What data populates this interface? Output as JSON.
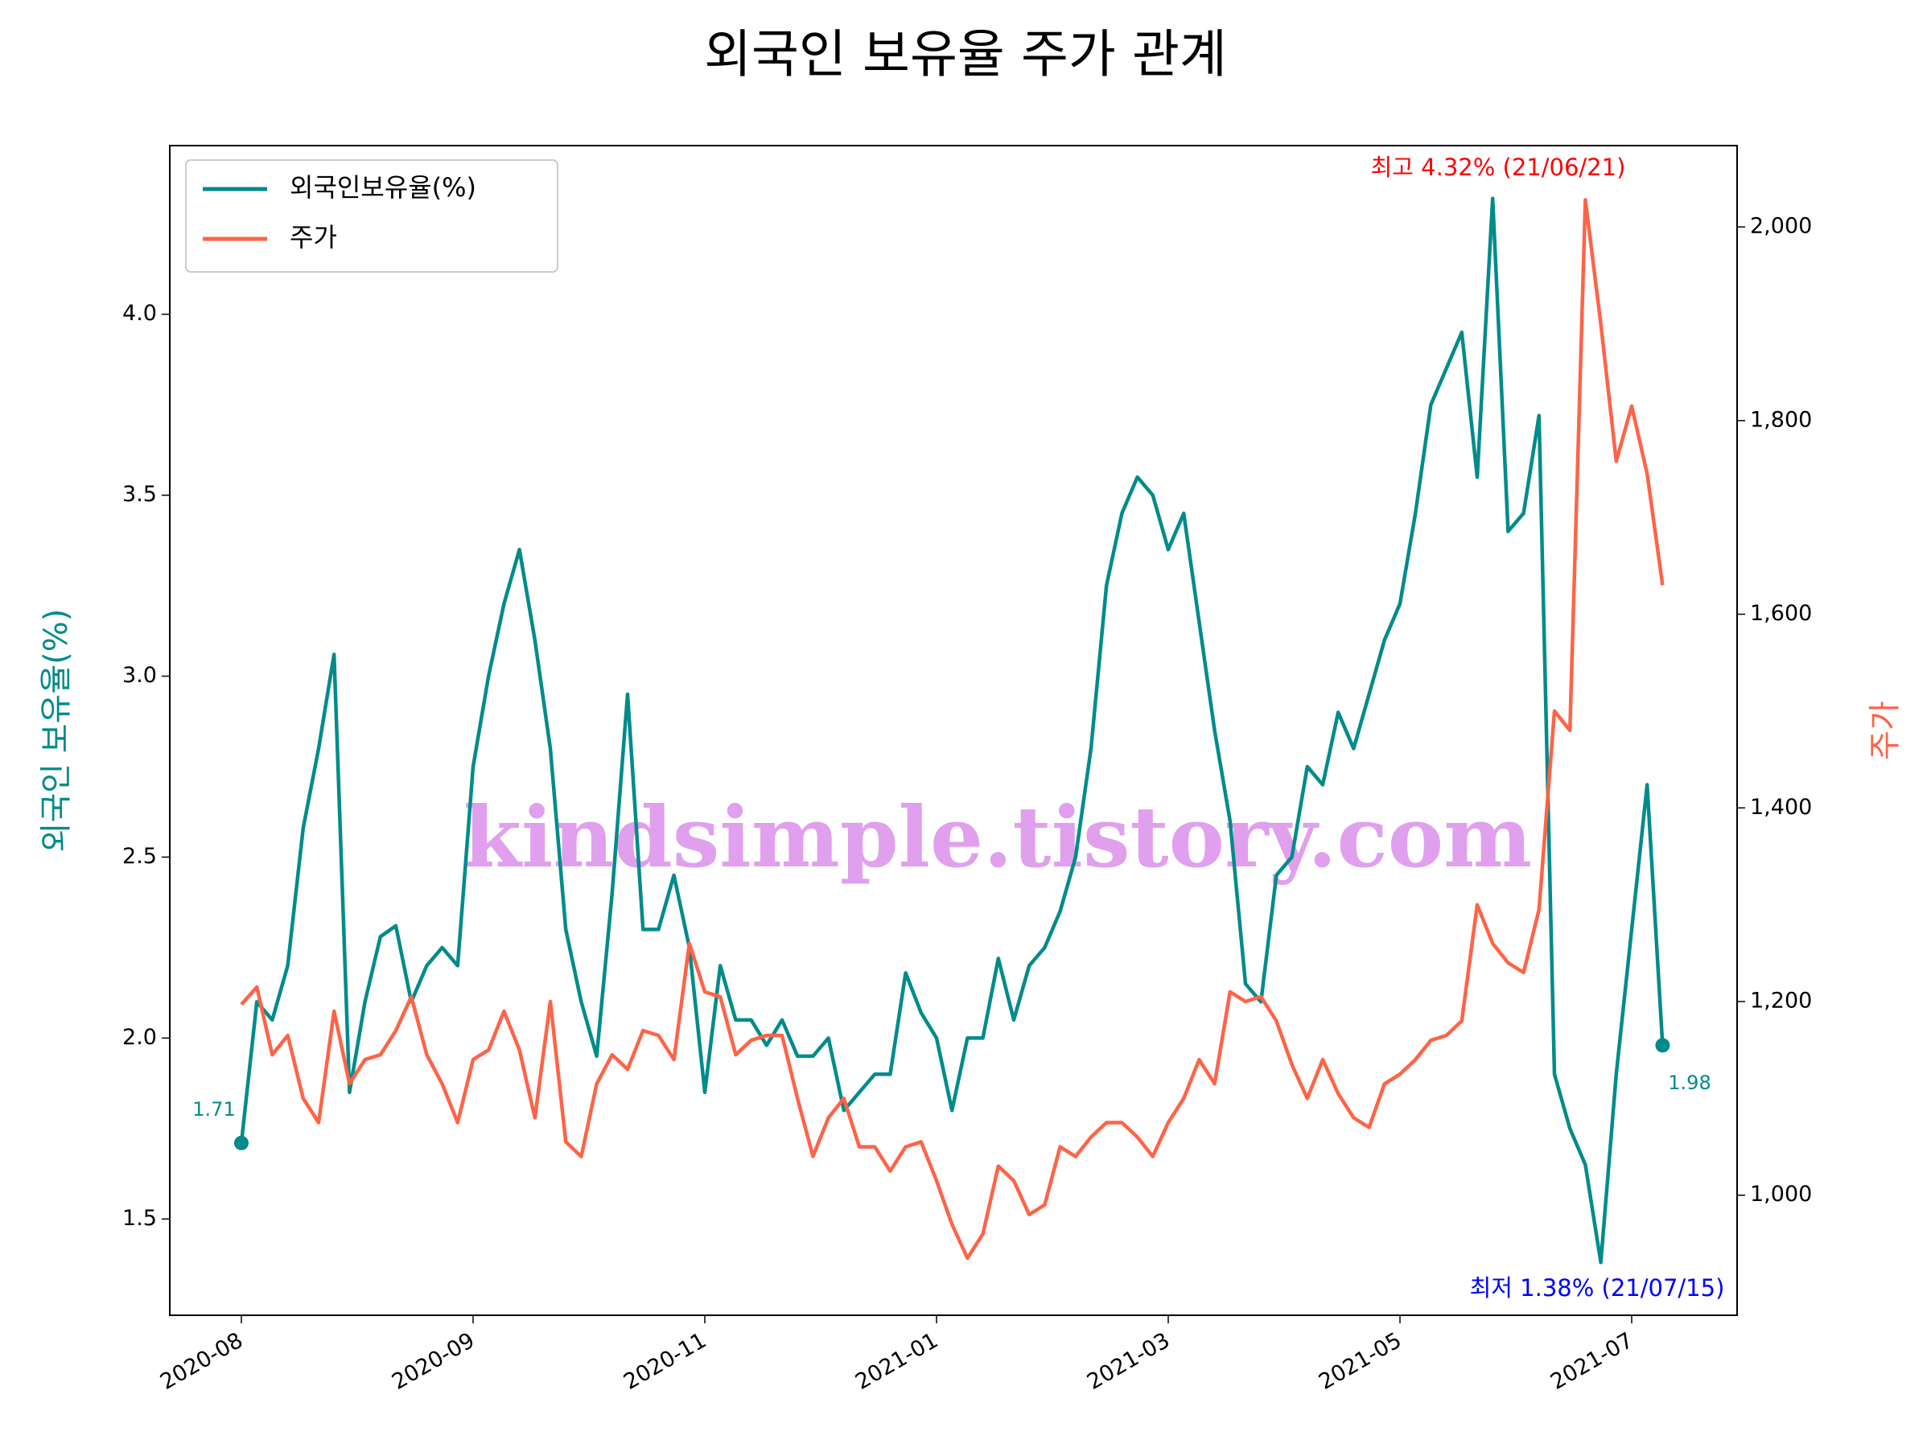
{
  "chart_data": {
    "type": "line",
    "title": "외국인 보유율 주가 관계",
    "ylabel": "외국인 보유율(%)",
    "y2label": "주가",
    "watermark": "kindsimple.tistory.com",
    "legend": "upper left",
    "categories": [
      "2020-08",
      null,
      null,
      null,
      null,
      null,
      null,
      null,
      null,
      null,
      null,
      null,
      null,
      null,
      null,
      "2020-09",
      null,
      null,
      null,
      null,
      null,
      null,
      null,
      null,
      null,
      null,
      null,
      null,
      null,
      null,
      "2020-11",
      null,
      null,
      null,
      null,
      null,
      null,
      null,
      null,
      null,
      null,
      null,
      null,
      null,
      null,
      "2021-01",
      null,
      null,
      null,
      null,
      null,
      null,
      null,
      null,
      null,
      null,
      null,
      null,
      null,
      null,
      "2021-03",
      null,
      null,
      null,
      null,
      null,
      null,
      null,
      null,
      null,
      null,
      null,
      null,
      null,
      null,
      "2021-05",
      null,
      null,
      null,
      null,
      null,
      null,
      null,
      null,
      null,
      null,
      null,
      null,
      null,
      null,
      "2021-07",
      null,
      null
    ],
    "series": [
      {
        "name": "외국인보유율(%)",
        "color": "#008b8b",
        "axis": "y",
        "values": [
          1.71,
          2.1,
          2.05,
          2.2,
          2.58,
          2.8,
          3.06,
          1.85,
          2.1,
          2.28,
          2.31,
          2.1,
          2.2,
          2.25,
          2.2,
          2.75,
          3.0,
          3.2,
          3.35,
          3.1,
          2.8,
          2.3,
          2.1,
          1.95,
          2.4,
          2.95,
          2.3,
          2.3,
          2.45,
          2.25,
          1.85,
          2.2,
          2.05,
          2.05,
          1.98,
          2.05,
          1.95,
          1.95,
          2.0,
          1.8,
          1.85,
          1.9,
          1.9,
          2.18,
          2.07,
          2.0,
          1.8,
          2.0,
          2.0,
          2.22,
          2.05,
          2.2,
          2.25,
          2.35,
          2.5,
          2.8,
          3.25,
          3.45,
          3.55,
          3.5,
          3.35,
          3.45,
          3.15,
          2.85,
          2.6,
          2.15,
          2.1,
          2.45,
          2.5,
          2.75,
          2.7,
          2.9,
          2.8,
          2.95,
          3.1,
          3.2,
          3.45,
          3.75,
          3.85,
          3.95,
          3.55,
          4.32,
          3.4,
          3.45,
          3.72,
          1.9,
          1.75,
          1.65,
          1.38,
          1.9,
          2.3,
          2.7,
          1.98
        ]
      },
      {
        "name": "주가",
        "color": "#ff6347",
        "axis": "y2",
        "values": [
          1197,
          1215,
          1145,
          1165,
          1100,
          1075,
          1190,
          1115,
          1140,
          1145,
          1170,
          1205,
          1145,
          1115,
          1075,
          1140,
          1150,
          1190,
          1150,
          1080,
          1200,
          1055,
          1040,
          1115,
          1145,
          1130,
          1170,
          1165,
          1140,
          1260,
          1210,
          1205,
          1145,
          1160,
          1165,
          1165,
          1100,
          1040,
          1080,
          1100,
          1050,
          1050,
          1025,
          1050,
          1055,
          1015,
          970,
          935,
          960,
          1030,
          1015,
          980,
          990,
          1050,
          1040,
          1060,
          1075,
          1075,
          1060,
          1040,
          1075,
          1100,
          1140,
          1115,
          1210,
          1200,
          1205,
          1180,
          1135,
          1100,
          1140,
          1105,
          1080,
          1070,
          1115,
          1125,
          1140,
          1160,
          1165,
          1180,
          1300,
          1260,
          1240,
          1230,
          1295,
          1500,
          1480,
          2028,
          1900,
          1758,
          1815,
          1745,
          1630
        ]
      }
    ],
    "ylim": [
      1.234,
      4.466
    ],
    "yticks": [
      1.5,
      {
        "value": 2.0,
        "label": "2.0"
      },
      2.5,
      {
        "value": 3.0,
        "label": "3.0"
      },
      3.5,
      {
        "value": 4.0,
        "label": "4.0"
      }
    ],
    "y2lim": [
      876,
      2084
    ],
    "y2ticks": [
      {
        "value": 1000,
        "label": "1,000"
      },
      {
        "value": 1200,
        "label": "1,200"
      },
      {
        "value": 1400,
        "label": "1,400"
      },
      {
        "value": 1600,
        "label": "1,600"
      },
      {
        "value": 1800,
        "label": "1,800"
      },
      {
        "value": 2000,
        "label": "2,000"
      }
    ],
    "annotations": [
      {
        "text": "최고 4.32% (21/06/21)",
        "color": "#ff0000"
      },
      {
        "text": "최저 1.38% (21/07/15)",
        "color": "#0000ff"
      },
      {
        "text": "1.71",
        "color": "#008b8b"
      },
      {
        "text": "1.98",
        "color": "#008b8b"
      }
    ]
  }
}
